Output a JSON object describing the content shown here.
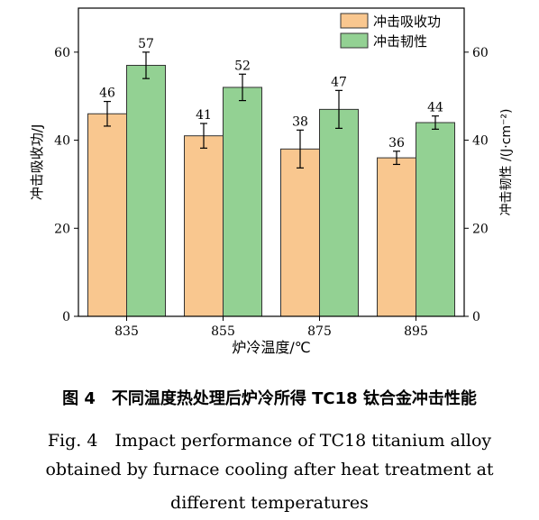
{
  "chart_data": {
    "type": "bar",
    "categories": [
      "835",
      "855",
      "875",
      "895"
    ],
    "series": [
      {
        "name": "冲击吸收功",
        "values": [
          46,
          41,
          38,
          36
        ],
        "errors": [
          2.8,
          2.8,
          4.3,
          1.5
        ],
        "color": "#f9c78f",
        "axis": "left"
      },
      {
        "name": "冲击韧性",
        "values": [
          57,
          52,
          47,
          44
        ],
        "errors": [
          3.0,
          3.0,
          4.3,
          1.5
        ],
        "color": "#93d193",
        "axis": "right"
      }
    ],
    "xlabel": "炉冷温度/℃",
    "ylabel_left": "冲击吸收功/J",
    "ylabel_right": "冲击韧性 /(J·cm⁻²)",
    "ylim": [
      0,
      70
    ],
    "yticks": [
      0,
      20,
      40,
      60
    ],
    "legend_position": "top-right",
    "grid": false
  },
  "caption": {
    "chinese": "图 4　不同温度热处理后炉冷所得 TC18 钛合金冲击性能",
    "english_line1": "Fig. 4　Impact performance of TC18 titanium alloy",
    "english_line2": "obtained by furnace cooling after heat treatment at",
    "english_line3": "different temperatures"
  }
}
